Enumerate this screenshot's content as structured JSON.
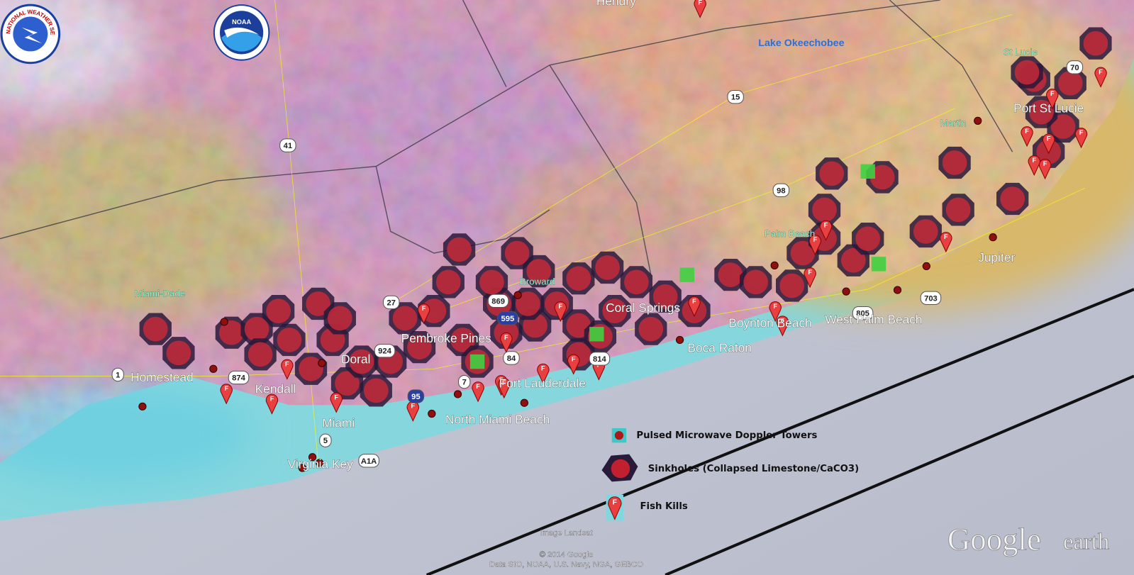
{
  "logos": {
    "nws": "NATIONAL WEATHER SERVICE",
    "noaa": "NOAA"
  },
  "places": [
    "Hendry",
    "Lake Okeechobee",
    "St Lucie",
    "Port St Lucie",
    "Martin",
    "Palm Beach",
    "Jupiter",
    "West Palm Beach",
    "Boynton Beach",
    "Boca Raton",
    "Coral Springs",
    "Broward",
    "Pembroke Pines",
    "Doral",
    "Miami-Dade",
    "Homestead",
    "Kendall",
    "Fort Lauderdale",
    "Miami",
    "North Miami Beach",
    "Virginia Key"
  ],
  "routes": [
    "41",
    "15",
    "98",
    "27",
    "869",
    "595",
    "924",
    "84",
    "814",
    "874",
    "7",
    "95",
    "5",
    "A1A",
    "703",
    "70",
    "805",
    "1"
  ],
  "marker_label": "F",
  "legend": [
    "Pulsed Microwave Doppler Towers",
    "Sinkholes (Collapsed Limestone/CaCO3)",
    "Fish Kills"
  ],
  "attribution": {
    "imagery": "Image Landsat",
    "copyright": "© 2014 Google",
    "data": "Data SIO, NOAA, U.S. Navy, NGA, GEBCO"
  },
  "brand": {
    "name": "Google",
    "product": "earth"
  }
}
